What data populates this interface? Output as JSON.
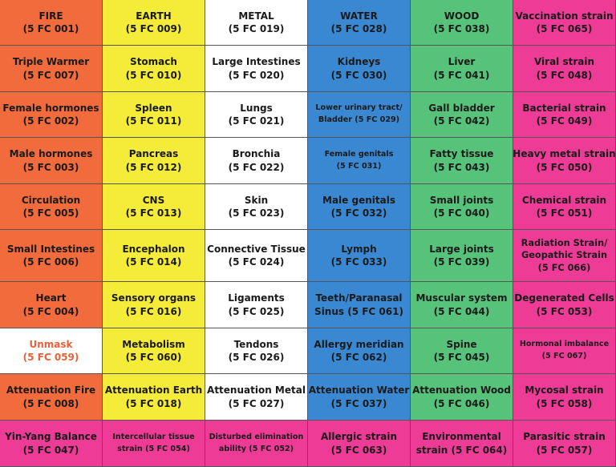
{
  "colors": {
    "fire": "#f26b3d",
    "earth": "#f5ec3a",
    "metal": "#ffffff",
    "water": "#3a88d2",
    "wood": "#57c27a",
    "strain": "#ee3c96",
    "unmask_text": "#e8613a"
  },
  "columns": [
    {
      "name": "fire",
      "cells": [
        {
          "l1": "FIRE",
          "l2": "(5 FC 001)"
        },
        {
          "l1": "Triple Warmer",
          "l2": "(5 FC 007)"
        },
        {
          "l1": "Female hormones",
          "l2": "(5 FC 002)"
        },
        {
          "l1": "Male hormones",
          "l2": "(5 FC 003)"
        },
        {
          "l1": "Circulation",
          "l2": "(5 FC 005)"
        },
        {
          "l1": "Small Intestines",
          "l2": "(5 FC 006)"
        },
        {
          "l1": "Heart",
          "l2": "(5 FC 004)"
        },
        {
          "l1": "Unmask",
          "l2": "(5 FC 059)",
          "bg": "#ffffff",
          "fg": "#e8613a"
        },
        {
          "l1": "Attenuation Fire",
          "l2": "(5 FC 008)"
        },
        {
          "l1": "Yin-Yang Balance",
          "l2": "(5 FC 047)",
          "bg": "#ee3c96"
        }
      ]
    },
    {
      "name": "earth",
      "cells": [
        {
          "l1": "EARTH",
          "l2": "(5 FC 009)"
        },
        {
          "l1": "Stomach",
          "l2": "(5 FC 010)"
        },
        {
          "l1": "Spleen",
          "l2": "(5 FC 011)"
        },
        {
          "l1": "Pancreas",
          "l2": "(5 FC 012)"
        },
        {
          "l1": "CNS",
          "l2": "(5 FC 013)"
        },
        {
          "l1": "Encephalon",
          "l2": "(5 FC 014)"
        },
        {
          "l1": "Sensory organs",
          "l2": "(5 FC 016)"
        },
        {
          "l1": "Metabolism",
          "l2": "(5 FC 060)"
        },
        {
          "l1": "Attenuation Earth",
          "l2": "(5 FC 018)"
        },
        {
          "l1": "Intercellular tissue",
          "l2": "strain (5 FC 054)",
          "bg": "#ee3c96",
          "small": true
        }
      ]
    },
    {
      "name": "metal",
      "cells": [
        {
          "l1": "METAL",
          "l2": "(5 FC 019)"
        },
        {
          "l1": "Large Intestines",
          "l2": "(5 FC 020)"
        },
        {
          "l1": "Lungs",
          "l2": "(5 FC 021)"
        },
        {
          "l1": "Bronchia",
          "l2": "(5 FC 022)"
        },
        {
          "l1": "Skin",
          "l2": "(5 FC 023)"
        },
        {
          "l1": "Connective Tissue",
          "l2": "(5 FC 024)"
        },
        {
          "l1": "Ligaments",
          "l2": "(5 FC 025)"
        },
        {
          "l1": "Tendons",
          "l2": "(5 FC 026)"
        },
        {
          "l1": "Attenuation Metal",
          "l2": "(5 FC 027)"
        },
        {
          "l1": "Disturbed elimination",
          "l2": "ability (5 FC 052)",
          "bg": "#ee3c96",
          "small": true
        }
      ]
    },
    {
      "name": "water",
      "cells": [
        {
          "l1": "WATER",
          "l2": "(5 FC 028)"
        },
        {
          "l1": "Kidneys",
          "l2": "(5 FC 030)"
        },
        {
          "l1": "Lower urinary tract/",
          "l2": "Bladder (5 FC 029)",
          "small": true
        },
        {
          "l1": "Female genitals",
          "l2": "(5 FC 031)",
          "small": true
        },
        {
          "l1": "Male genitals",
          "l2": "(5 FC 032)"
        },
        {
          "l1": "Lymph",
          "l2": "(5 FC 033)"
        },
        {
          "l1": "Teeth/Paranasal",
          "l2": "Sinus (5 FC 061)"
        },
        {
          "l1": "Allergy meridian",
          "l2": "(5 FC 062)"
        },
        {
          "l1": "Attenuation Water",
          "l2": "(5 FC 037)"
        },
        {
          "l1": "Allergic strain",
          "l2": "(5 FC 063)",
          "bg": "#ee3c96"
        }
      ]
    },
    {
      "name": "wood",
      "cells": [
        {
          "l1": "WOOD",
          "l2": "(5 FC 038)"
        },
        {
          "l1": "Liver",
          "l2": "(5 FC 041)"
        },
        {
          "l1": "Gall bladder",
          "l2": "(5 FC 042)"
        },
        {
          "l1": "Fatty tissue",
          "l2": "(5 FC 043)"
        },
        {
          "l1": "Small joints",
          "l2": "(5 FC 040)"
        },
        {
          "l1": "Large joints",
          "l2": "(5 FC 039)"
        },
        {
          "l1": "Muscular system",
          "l2": "(5 FC 044)"
        },
        {
          "l1": "Spine",
          "l2": "(5 FC 045)"
        },
        {
          "l1": "Attenuation Wood",
          "l2": "(5 FC 046)"
        },
        {
          "l1": "Environmental",
          "l2": "strain (5 FC 064)",
          "bg": "#ee3c96"
        }
      ]
    },
    {
      "name": "strain",
      "cells": [
        {
          "l1": "Vaccination strain",
          "l2": "(5 FC 065)"
        },
        {
          "l1": "Viral strain",
          "l2": "(5 FC 048)"
        },
        {
          "l1": "Bacterial strain",
          "l2": "(5 FC 049)"
        },
        {
          "l1": "Heavy metal strain",
          "l2": "(5 FC 050)"
        },
        {
          "l1": "Chemical strain",
          "l2": "(5 FC 051)"
        },
        {
          "l1": "Radiation Strain/",
          "l2": "Geopathic Strain",
          "l3": "(5 FC 066)"
        },
        {
          "l1": "Degenerated Cells",
          "l2": "(5 FC 053)"
        },
        {
          "l1": "Hormonal imbalance",
          "l2": "(5 FC 067)",
          "small": true
        },
        {
          "l1": "Mycosal strain",
          "l2": "(5 FC 058)"
        },
        {
          "l1": "Parasitic strain",
          "l2": "(5 FC 057)"
        }
      ]
    }
  ]
}
